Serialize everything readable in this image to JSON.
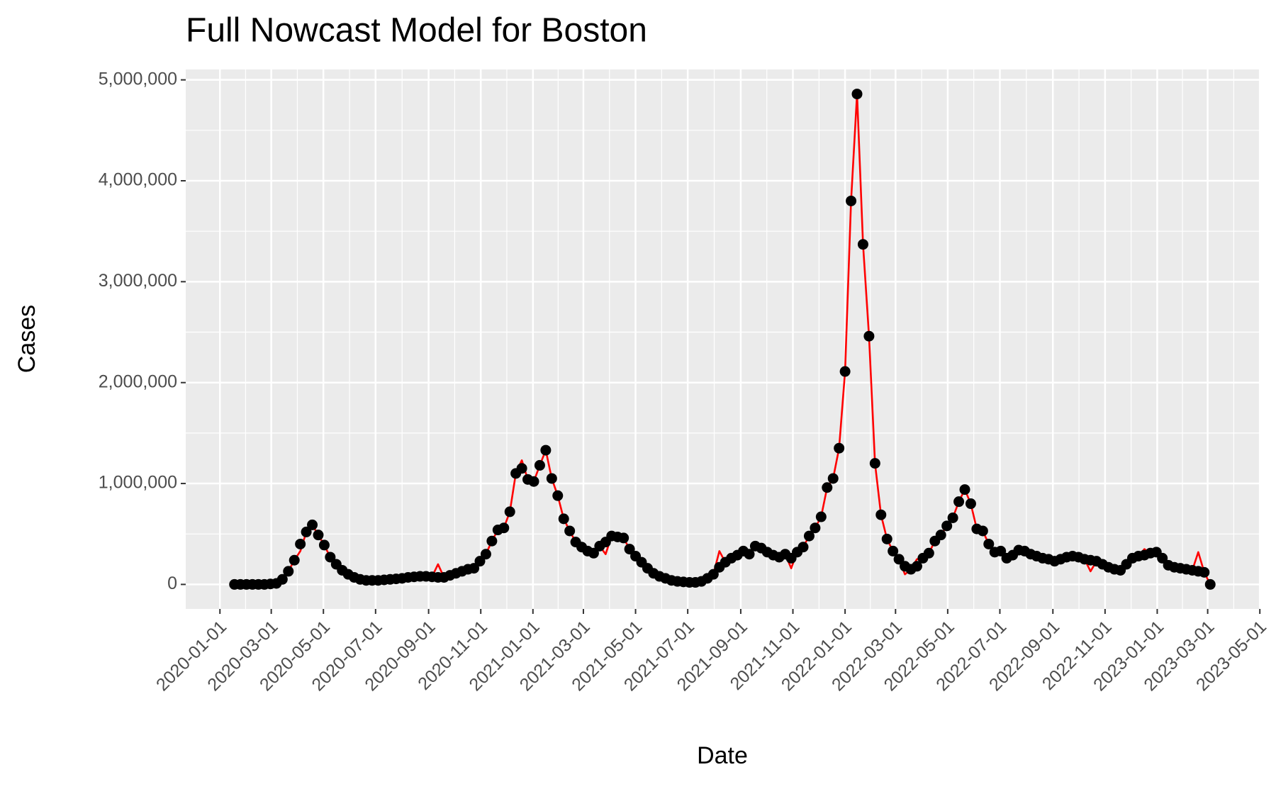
{
  "chart_data": {
    "type": "line-points",
    "title": "Full Nowcast Model for Boston",
    "x_label": "Date",
    "y_label": "Cases",
    "x": [
      "2020-01-18",
      "2020-01-25",
      "2020-02-01",
      "2020-02-08",
      "2020-02-15",
      "2020-02-22",
      "2020-02-29",
      "2020-03-07",
      "2020-03-14",
      "2020-03-21",
      "2020-03-28",
      "2020-04-04",
      "2020-04-11",
      "2020-04-18",
      "2020-04-25",
      "2020-05-02",
      "2020-05-09",
      "2020-05-16",
      "2020-05-23",
      "2020-05-30",
      "2020-06-06",
      "2020-06-13",
      "2020-06-20",
      "2020-06-27",
      "2020-07-04",
      "2020-07-11",
      "2020-07-18",
      "2020-07-25",
      "2020-08-01",
      "2020-08-08",
      "2020-08-15",
      "2020-08-22",
      "2020-08-29",
      "2020-09-05",
      "2020-09-12",
      "2020-09-19",
      "2020-09-26",
      "2020-10-03",
      "2020-10-10",
      "2020-10-17",
      "2020-10-24",
      "2020-10-31",
      "2020-11-07",
      "2020-11-14",
      "2020-11-21",
      "2020-11-28",
      "2020-12-05",
      "2020-12-12",
      "2020-12-19",
      "2020-12-26",
      "2021-01-02",
      "2021-01-09",
      "2021-01-16",
      "2021-01-23",
      "2021-01-30",
      "2021-02-06",
      "2021-02-13",
      "2021-02-20",
      "2021-02-27",
      "2021-03-06",
      "2021-03-13",
      "2021-03-20",
      "2021-03-27",
      "2021-04-03",
      "2021-04-10",
      "2021-04-17",
      "2021-04-24",
      "2021-05-01",
      "2021-05-08",
      "2021-05-15",
      "2021-05-22",
      "2021-05-29",
      "2021-06-05",
      "2021-06-12",
      "2021-06-19",
      "2021-06-26",
      "2021-07-03",
      "2021-07-10",
      "2021-07-17",
      "2021-07-24",
      "2021-07-31",
      "2021-08-07",
      "2021-08-14",
      "2021-08-21",
      "2021-08-28",
      "2021-09-04",
      "2021-09-11",
      "2021-09-18",
      "2021-09-25",
      "2021-10-02",
      "2021-10-09",
      "2021-10-16",
      "2021-10-23",
      "2021-10-30",
      "2021-11-06",
      "2021-11-13",
      "2021-11-20",
      "2021-11-27",
      "2021-12-04",
      "2021-12-11",
      "2021-12-18",
      "2021-12-25",
      "2022-01-01",
      "2022-01-08",
      "2022-01-15",
      "2022-01-22",
      "2022-01-29",
      "2022-02-05",
      "2022-02-12",
      "2022-02-19",
      "2022-02-26",
      "2022-03-05",
      "2022-03-12",
      "2022-03-19",
      "2022-03-26",
      "2022-04-02",
      "2022-04-09",
      "2022-04-16",
      "2022-04-23",
      "2022-04-30",
      "2022-05-07",
      "2022-05-14",
      "2022-05-21",
      "2022-05-28",
      "2022-06-04",
      "2022-06-11",
      "2022-06-18",
      "2022-06-25",
      "2022-07-02",
      "2022-07-09",
      "2022-07-16",
      "2022-07-23",
      "2022-07-30",
      "2022-08-06",
      "2022-08-13",
      "2022-08-20",
      "2022-08-27",
      "2022-09-03",
      "2022-09-10",
      "2022-09-17",
      "2022-09-24",
      "2022-10-01",
      "2022-10-08",
      "2022-10-15",
      "2022-10-22",
      "2022-10-29",
      "2022-11-05",
      "2022-11-12",
      "2022-11-19",
      "2022-11-26",
      "2022-12-03",
      "2022-12-10",
      "2022-12-17",
      "2022-12-24",
      "2022-12-31",
      "2023-01-07",
      "2023-01-14",
      "2023-01-21",
      "2023-01-28",
      "2023-02-04",
      "2023-02-11",
      "2023-02-18",
      "2023-02-25",
      "2023-03-04"
    ],
    "series": [
      {
        "style": "line",
        "color": "#ff0000",
        "values": [
          0,
          0,
          0,
          0,
          0,
          0,
          5000,
          10000,
          50000,
          130000,
          240000,
          330000,
          520000,
          590000,
          490000,
          390000,
          270000,
          200000,
          140000,
          100000,
          70000,
          50000,
          40000,
          40000,
          40000,
          45000,
          50000,
          55000,
          60000,
          70000,
          75000,
          80000,
          80000,
          75000,
          200000,
          70000,
          90000,
          110000,
          130000,
          150000,
          160000,
          230000,
          300000,
          430000,
          540000,
          560000,
          720000,
          1100000,
          1230000,
          1040000,
          1020000,
          1180000,
          1330000,
          1050000,
          880000,
          650000,
          530000,
          420000,
          370000,
          330000,
          310000,
          380000,
          300000,
          480000,
          470000,
          460000,
          350000,
          280000,
          220000,
          160000,
          110000,
          80000,
          60000,
          40000,
          30000,
          25000,
          20000,
          20000,
          30000,
          60000,
          100000,
          330000,
          220000,
          260000,
          290000,
          330000,
          300000,
          380000,
          360000,
          320000,
          290000,
          270000,
          300000,
          160000,
          320000,
          370000,
          480000,
          560000,
          670000,
          960000,
          1050000,
          1350000,
          2110000,
          3800000,
          4860000,
          3370000,
          2460000,
          1200000,
          690000,
          450000,
          330000,
          250000,
          100000,
          150000,
          250000,
          260000,
          310000,
          430000,
          490000,
          580000,
          660000,
          820000,
          940000,
          800000,
          550000,
          530000,
          400000,
          320000,
          330000,
          260000,
          290000,
          340000,
          330000,
          300000,
          280000,
          260000,
          250000,
          230000,
          250000,
          270000,
          280000,
          270000,
          250000,
          130000,
          230000,
          200000,
          170000,
          150000,
          140000,
          200000,
          260000,
          280000,
          350000,
          310000,
          320000,
          260000,
          190000,
          170000,
          160000,
          150000,
          140000,
          320000,
          120000,
          0
        ]
      },
      {
        "style": "points",
        "color": "#000000",
        "values": [
          0,
          0,
          0,
          0,
          0,
          0,
          5000,
          10000,
          50000,
          130000,
          240000,
          400000,
          520000,
          590000,
          490000,
          390000,
          270000,
          200000,
          140000,
          100000,
          70000,
          50000,
          40000,
          40000,
          40000,
          45000,
          50000,
          55000,
          60000,
          70000,
          75000,
          80000,
          80000,
          75000,
          70000,
          70000,
          90000,
          110000,
          130000,
          150000,
          160000,
          230000,
          300000,
          430000,
          540000,
          560000,
          720000,
          1100000,
          1150000,
          1040000,
          1020000,
          1180000,
          1330000,
          1050000,
          880000,
          650000,
          530000,
          420000,
          370000,
          330000,
          310000,
          380000,
          420000,
          480000,
          470000,
          460000,
          350000,
          280000,
          220000,
          160000,
          110000,
          80000,
          60000,
          40000,
          30000,
          25000,
          20000,
          20000,
          30000,
          60000,
          100000,
          170000,
          220000,
          260000,
          290000,
          330000,
          300000,
          380000,
          360000,
          320000,
          290000,
          270000,
          300000,
          260000,
          320000,
          370000,
          480000,
          560000,
          670000,
          960000,
          1050000,
          1350000,
          2110000,
          3800000,
          4860000,
          3370000,
          2460000,
          1200000,
          690000,
          450000,
          330000,
          250000,
          180000,
          150000,
          180000,
          260000,
          310000,
          430000,
          490000,
          580000,
          660000,
          820000,
          940000,
          800000,
          550000,
          530000,
          400000,
          320000,
          330000,
          260000,
          290000,
          340000,
          330000,
          300000,
          280000,
          260000,
          250000,
          230000,
          250000,
          270000,
          280000,
          270000,
          250000,
          240000,
          230000,
          200000,
          170000,
          150000,
          140000,
          200000,
          260000,
          280000,
          290000,
          310000,
          320000,
          260000,
          190000,
          170000,
          160000,
          150000,
          140000,
          130000,
          120000,
          0
        ]
      }
    ],
    "xlim": [
      "2019-11-22",
      "2023-04-30"
    ],
    "xticks": [
      "2020-01-01",
      "2020-03-01",
      "2020-05-01",
      "2020-07-01",
      "2020-09-01",
      "2020-11-01",
      "2021-01-01",
      "2021-03-01",
      "2021-05-01",
      "2021-07-01",
      "2021-09-01",
      "2021-11-01",
      "2022-01-01",
      "2022-03-01",
      "2022-05-01",
      "2022-07-01",
      "2022-09-01",
      "2022-11-01",
      "2023-01-01",
      "2023-03-01",
      "2023-05-01"
    ],
    "ylim": [
      -243000,
      5103000
    ],
    "yticks": [
      0,
      {
        "value": 1000000,
        "label": "1,000,000"
      },
      {
        "value": 2000000,
        "label": "2,000,000"
      },
      {
        "value": 3000000,
        "label": "3,000,000"
      },
      {
        "value": 4000000,
        "label": "4,000,000"
      },
      {
        "value": 5000000,
        "label": "5,000,000"
      }
    ],
    "grid": true,
    "panel_color": "#ebebeb"
  }
}
